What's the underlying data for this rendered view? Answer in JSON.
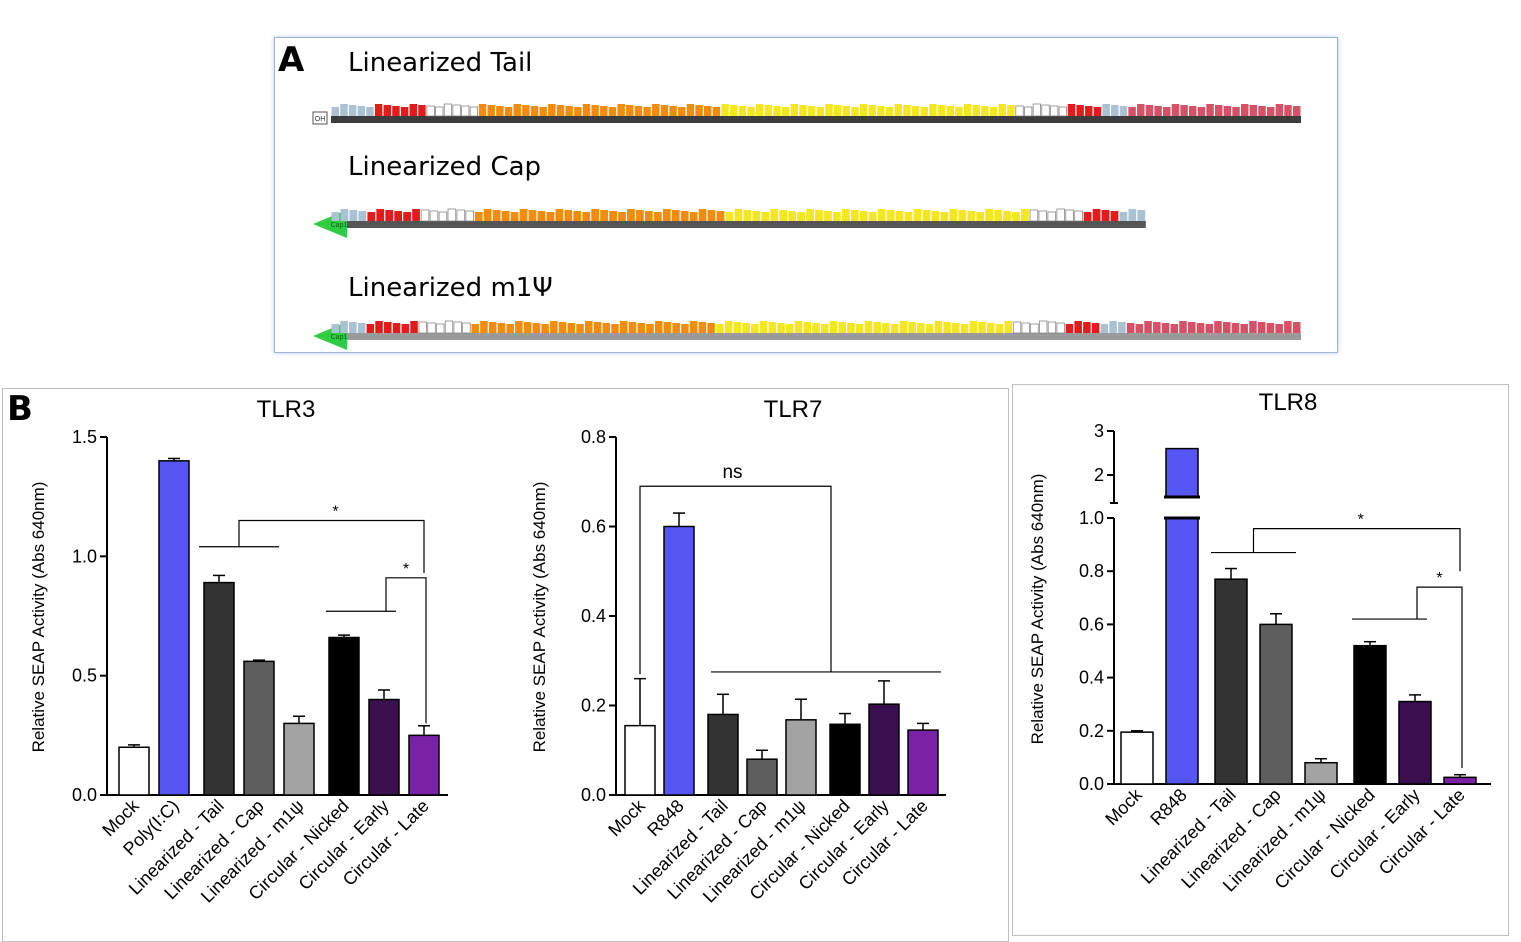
{
  "panel_a": {
    "letter": "A",
    "constructs": [
      {
        "name": "Linearized Tail",
        "start_marker": "OH",
        "fill": 1.0,
        "segments": [
          [
            "#a9c1d3",
            5
          ],
          [
            "#e41b1b",
            6
          ],
          [
            "#ffffff",
            6
          ],
          [
            "#f28c0c",
            28
          ],
          [
            "#f5e624",
            34
          ],
          [
            "#ffffff",
            6
          ],
          [
            "#e41b1b",
            4
          ],
          [
            "#a9c1d3",
            3
          ],
          [
            "#d65066",
            20
          ]
        ]
      },
      {
        "name": "Linearized Cap",
        "start_marker": "Cap1",
        "fill": 0.84,
        "segments": [
          [
            "#a9c1d3",
            4
          ],
          [
            "#e41b1b",
            6
          ],
          [
            "#ffffff",
            6
          ],
          [
            "#f28c0c",
            28
          ],
          [
            "#f5e624",
            34
          ],
          [
            "#ffffff",
            6
          ],
          [
            "#e41b1b",
            4
          ],
          [
            "#a9c1d3",
            3
          ]
        ]
      },
      {
        "name": "Linearized m1Ψ",
        "start_marker": "Cap1",
        "fill": 1.0,
        "segments": [
          [
            "#a9c1d3",
            4
          ],
          [
            "#e41b1b",
            6
          ],
          [
            "#ffffff",
            6
          ],
          [
            "#f28c0c",
            28
          ],
          [
            "#f5e624",
            34
          ],
          [
            "#ffffff",
            6
          ],
          [
            "#e41b1b",
            4
          ],
          [
            "#a9c1d3",
            3
          ],
          [
            "#d65066",
            20
          ]
        ]
      }
    ]
  },
  "panel_b": {
    "letter": "B"
  },
  "chart_data": [
    {
      "type": "bar",
      "title": "TLR3",
      "ylabel": "Relative SEAP Activity (Abs 640nm)",
      "xlabel": "",
      "ylim": [
        0,
        1.5
      ],
      "yticks": [
        "0.0",
        "0.5",
        "1.0",
        "1.5"
      ],
      "grid": false,
      "categories": [
        "Mock",
        "Poly(I:C)",
        "Linearized - Tail",
        "Linearized - Cap",
        "Linearized - m1ψ",
        "Circular - Nicked",
        "Circular - Early",
        "Circular - Late"
      ],
      "values": [
        0.2,
        1.4,
        0.89,
        0.56,
        0.3,
        0.66,
        0.4,
        0.25
      ],
      "errors": [
        0.01,
        0.01,
        0.03,
        0.005,
        0.03,
        0.01,
        0.04,
        0.04
      ],
      "colors": [
        "#ffffff",
        "#5656f5",
        "#333333",
        "#5e5e5e",
        "#a3a3a3",
        "#000000",
        "#3a0f4f",
        "#7a21a6"
      ],
      "annotations": [
        "*",
        "*"
      ]
    },
    {
      "type": "bar",
      "title": "TLR7",
      "ylabel": "Relative SEAP Activity (Abs 640nm)",
      "xlabel": "",
      "ylim": [
        0,
        0.8
      ],
      "yticks": [
        "0.0",
        "0.2",
        "0.4",
        "0.6",
        "0.8"
      ],
      "grid": false,
      "categories": [
        "Mock",
        "R848",
        "Linearized - Tail",
        "Linearized - Cap",
        "Linearized - m1ψ",
        "Circular - Nicked",
        "Circular - Early",
        "Circular - Late"
      ],
      "values": [
        0.155,
        0.6,
        0.18,
        0.08,
        0.168,
        0.158,
        0.203,
        0.145
      ],
      "errors": [
        0.105,
        0.03,
        0.045,
        0.02,
        0.046,
        0.024,
        0.052,
        0.015
      ],
      "colors": [
        "#ffffff",
        "#5656f5",
        "#333333",
        "#5e5e5e",
        "#a3a3a3",
        "#000000",
        "#3a0f4f",
        "#7a21a6"
      ],
      "annotations": [
        "ns"
      ]
    },
    {
      "type": "bar",
      "title": "TLR8",
      "ylabel": "Relative SEAP Activity (Abs 640nm)",
      "xlabel": "",
      "ylim": [
        0,
        3
      ],
      "axis_break": [
        1.0,
        1.5
      ],
      "yticks": [
        "0.0",
        "0.2",
        "0.4",
        "0.6",
        "0.8",
        "1.0",
        "2",
        "3"
      ],
      "grid": false,
      "categories": [
        "Mock",
        "R848",
        "Linearized - Tail",
        "Linearized - Cap",
        "Linearized - m1ψ",
        "Circular - Nicked",
        "Circular - Early",
        "Circular - Late"
      ],
      "values": [
        0.195,
        2.6,
        0.77,
        0.6,
        0.08,
        0.52,
        0.31,
        0.025
      ],
      "errors": [
        0.005,
        0.0,
        0.04,
        0.04,
        0.015,
        0.015,
        0.025,
        0.01
      ],
      "colors": [
        "#ffffff",
        "#5656f5",
        "#333333",
        "#5e5e5e",
        "#a3a3a3",
        "#000000",
        "#3a0f4f",
        "#7a21a6"
      ],
      "annotations": [
        "*",
        "*"
      ]
    }
  ]
}
